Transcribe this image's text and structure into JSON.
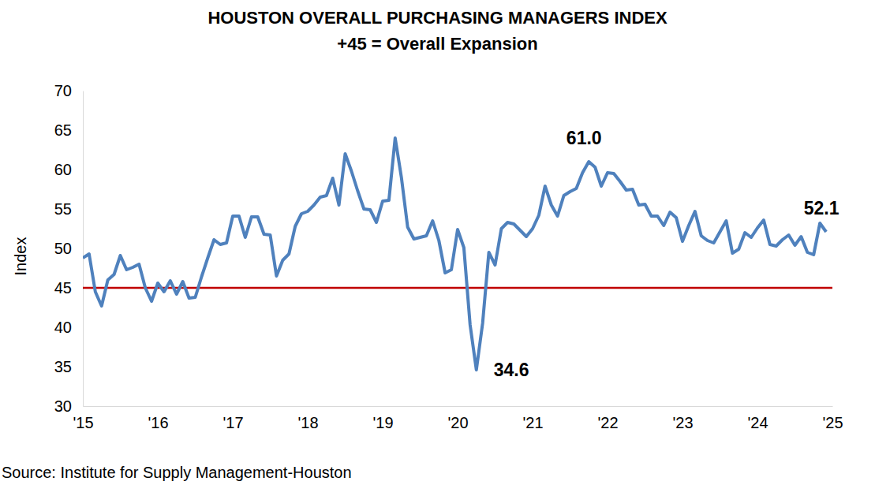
{
  "chart_data": {
    "type": "line",
    "title": "HOUSTON OVERALL PURCHASING MANAGERS INDEX",
    "subtitle": "+45 = Overall Expansion",
    "y_label": "Index",
    "source": "Source: Institute for Supply Management-Houston",
    "color": "#4f81bd",
    "grid": false,
    "threshold": {
      "value": 45,
      "color": "#c00000"
    },
    "ylim": [
      30,
      70
    ],
    "yticks": [
      30,
      35,
      40,
      45,
      50,
      55,
      60,
      65,
      70
    ],
    "categories": [
      "'15",
      null,
      null,
      null,
      null,
      null,
      null,
      null,
      null,
      null,
      null,
      null,
      "'16",
      null,
      null,
      null,
      null,
      null,
      null,
      null,
      null,
      null,
      null,
      null,
      "'17",
      null,
      null,
      null,
      null,
      null,
      null,
      null,
      null,
      null,
      null,
      null,
      "'18",
      null,
      null,
      null,
      null,
      null,
      null,
      null,
      null,
      null,
      null,
      null,
      "'19",
      null,
      null,
      null,
      null,
      null,
      null,
      null,
      null,
      null,
      null,
      null,
      "'20",
      null,
      null,
      null,
      null,
      null,
      null,
      null,
      null,
      null,
      null,
      null,
      "'21",
      null,
      null,
      null,
      null,
      null,
      null,
      null,
      null,
      null,
      null,
      null,
      "'22",
      null,
      null,
      null,
      null,
      null,
      null,
      null,
      null,
      null,
      null,
      null,
      "'23",
      null,
      null,
      null,
      null,
      null,
      null,
      null,
      null,
      null,
      null,
      null,
      "'24",
      null,
      null,
      null,
      null,
      null,
      null,
      null,
      null,
      null,
      null,
      null,
      "'25"
    ],
    "values": [
      48.8,
      49.3,
      44.5,
      42.7,
      46.0,
      46.7,
      49.1,
      47.3,
      47.6,
      48.0,
      45.0,
      43.3,
      45.6,
      44.5,
      45.9,
      44.2,
      45.8,
      43.7,
      43.8,
      46.4,
      48.8,
      51.1,
      50.5,
      50.7,
      54.1,
      54.1,
      51.4,
      54.0,
      54.0,
      51.8,
      51.7,
      46.5,
      48.5,
      49.3,
      52.8,
      54.4,
      54.7,
      55.5,
      56.5,
      56.7,
      58.9,
      55.5,
      62.0,
      59.8,
      57.3,
      55.0,
      54.9,
      53.3,
      56.0,
      56.1,
      64.0,
      59.0,
      52.7,
      51.2,
      51.4,
      51.6,
      53.5,
      51.0,
      46.9,
      47.3,
      52.4,
      50.1,
      40.3,
      34.6,
      40.5,
      49.5,
      47.9,
      52.5,
      53.3,
      53.1,
      52.3,
      51.5,
      52.5,
      54.2,
      57.9,
      55.5,
      54.1,
      56.7,
      57.2,
      57.6,
      59.6,
      61.0,
      60.3,
      57.9,
      59.6,
      59.5,
      58.5,
      57.4,
      57.5,
      55.5,
      55.6,
      54.1,
      54.1,
      52.9,
      54.6,
      53.9,
      50.9,
      52.9,
      54.7,
      51.6,
      51.0,
      50.7,
      52.1,
      53.5,
      49.4,
      49.9,
      52.0,
      51.4,
      52.6,
      53.6,
      50.5,
      50.3,
      51.1,
      51.7,
      50.4,
      51.5,
      49.5,
      49.2,
      53.2,
      52.1,
      null
    ],
    "value_labels": [
      null,
      null,
      null,
      null,
      null,
      null,
      null,
      null,
      null,
      null,
      null,
      null,
      null,
      null,
      null,
      null,
      null,
      null,
      null,
      null,
      null,
      null,
      null,
      null,
      null,
      null,
      null,
      null,
      null,
      null,
      null,
      null,
      null,
      null,
      null,
      null,
      null,
      null,
      null,
      null,
      null,
      null,
      null,
      null,
      null,
      null,
      null,
      null,
      null,
      null,
      null,
      null,
      null,
      null,
      null,
      null,
      null,
      null,
      null,
      null,
      null,
      null,
      null,
      "34.6",
      null,
      null,
      null,
      null,
      null,
      null,
      null,
      null,
      null,
      null,
      null,
      null,
      null,
      null,
      null,
      null,
      null,
      "61.0",
      null,
      null,
      null,
      null,
      null,
      null,
      null,
      null,
      null,
      null,
      null,
      null,
      null,
      null,
      null,
      null,
      null,
      null,
      null,
      null,
      null,
      null,
      null,
      null,
      null,
      null,
      null,
      null,
      null,
      null,
      null,
      null,
      null,
      null,
      null,
      null,
      null,
      "52.1",
      null
    ]
  }
}
